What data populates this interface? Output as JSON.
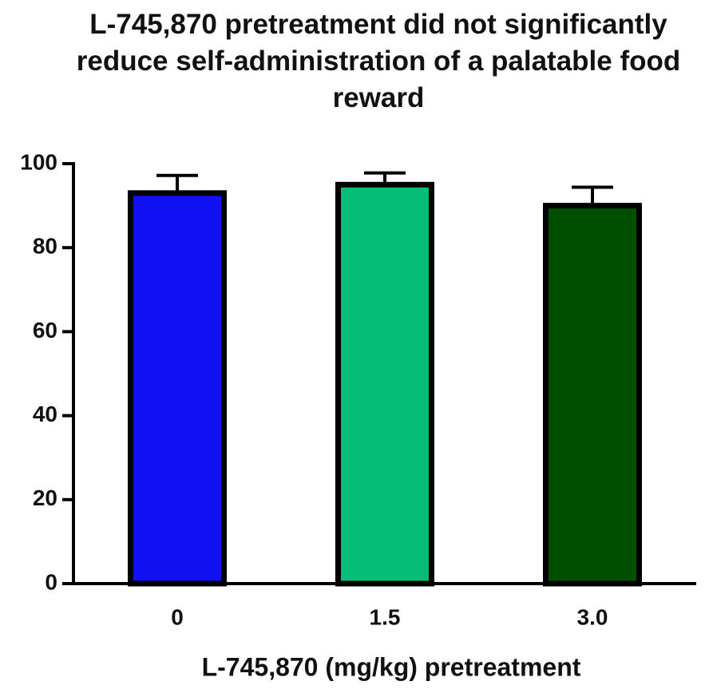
{
  "chart_data": {
    "type": "bar",
    "title": "L-745,870 pretreatment did not significantly reduce self-administration of a palatable food reward",
    "xlabel": "L-745,870 (mg/kg) pretreatment",
    "categories": [
      "0",
      "1.5",
      "3.0"
    ],
    "values": [
      93,
      95,
      90
    ],
    "errors": [
      4.2,
      2.8,
      4.4
    ],
    "colors": [
      "#1010f2",
      "#06bd78",
      "#004f00"
    ],
    "ylim": [
      0,
      100
    ],
    "yticks": [
      0,
      20,
      40,
      60,
      80,
      100
    ],
    "grid": false
  }
}
